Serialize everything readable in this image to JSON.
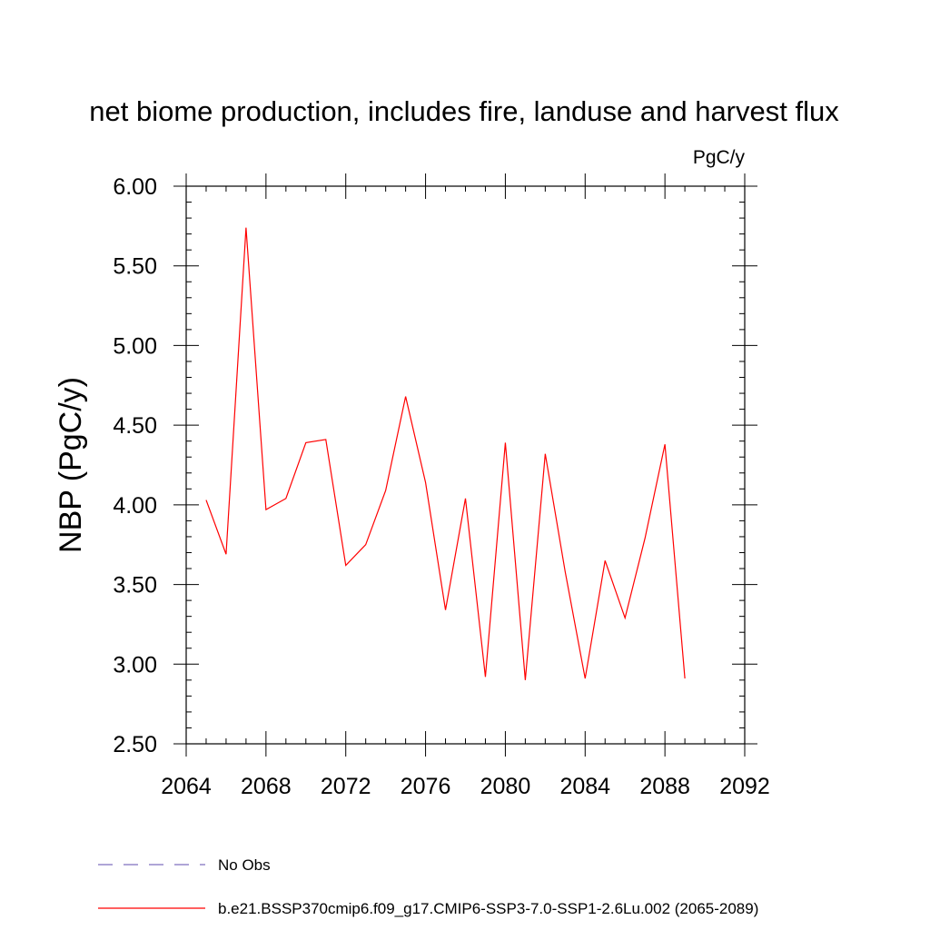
{
  "chart_data": {
    "type": "line",
    "title": "net biome production, includes fire, landuse and harvest flux",
    "units": "PgC/y",
    "ylabel": "NBP  (PgC/y)",
    "xlabel": "",
    "xlim": [
      2064,
      2092
    ],
    "ylim": [
      2.5,
      6.0
    ],
    "xticks": [
      2064,
      2068,
      2072,
      2076,
      2080,
      2084,
      2088,
      2092
    ],
    "xtick_labels": [
      "2064",
      "2068",
      "2072",
      "2076",
      "2080",
      "2084",
      "2088",
      "2092"
    ],
    "yticks": [
      2.5,
      3.0,
      3.5,
      4.0,
      4.5,
      5.0,
      5.5,
      6.0
    ],
    "ytick_labels": [
      "2.50",
      "3.00",
      "3.50",
      "4.00",
      "4.50",
      "5.00",
      "5.50",
      "6.00"
    ],
    "grid": false,
    "legend_position": "bottom",
    "series": [
      {
        "name": "No Obs",
        "color": "#7f6fbf",
        "dash": "dashed",
        "x": [],
        "y": []
      },
      {
        "name": "b.e21.BSSP370cmip6.f09_g17.CMIP6-SSP3-7.0-SSP1-2.6Lu.002 (2065-2089)",
        "color": "#ff0000",
        "dash": "solid",
        "x": [
          2065,
          2066,
          2067,
          2068,
          2069,
          2070,
          2071,
          2072,
          2073,
          2074,
          2075,
          2076,
          2077,
          2078,
          2079,
          2080,
          2081,
          2082,
          2083,
          2084,
          2085,
          2086,
          2087,
          2088,
          2089
        ],
        "y": [
          4.03,
          3.69,
          5.74,
          3.97,
          4.04,
          4.39,
          4.41,
          3.62,
          3.75,
          4.09,
          4.68,
          4.14,
          3.34,
          4.04,
          2.92,
          4.39,
          2.9,
          4.32,
          3.58,
          2.91,
          3.65,
          3.29,
          3.79,
          4.38,
          2.91
        ]
      }
    ]
  }
}
